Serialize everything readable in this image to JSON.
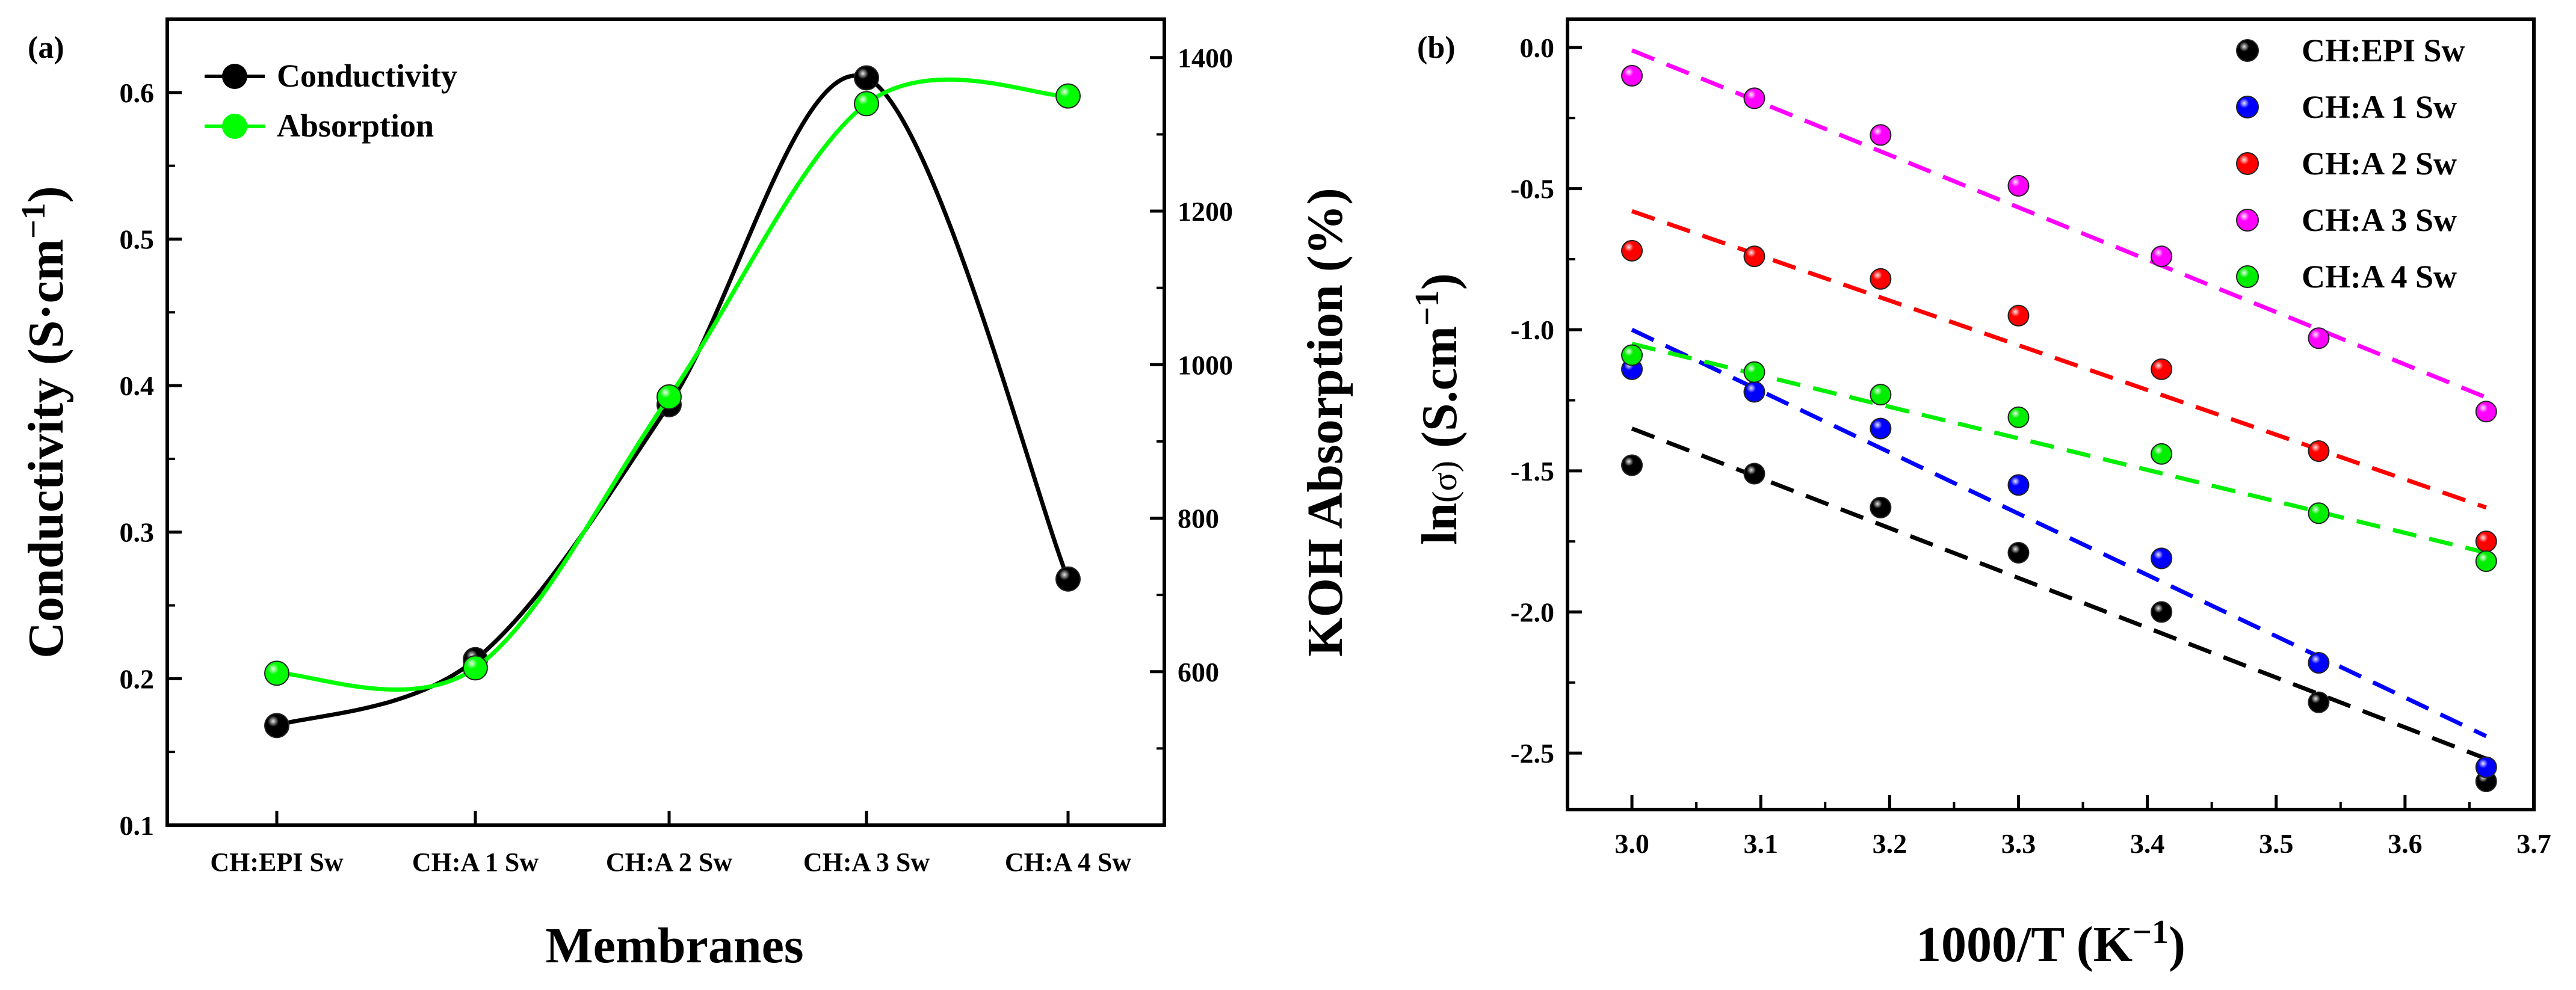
{
  "chart_data": [
    {
      "panel_label": "(a)",
      "type": "line",
      "xlabel": "Membranes",
      "ylabel": {
        "main": "Conductivity (S·cm",
        "sup": "−1",
        "end": ")"
      },
      "y2label": "KOH Absorption (%)",
      "categories": [
        "CH:EPI Sw",
        "CH:A 1 Sw",
        "CH:A 2 Sw",
        "CH:A 3 Sw",
        "CH:A 4 Sw"
      ],
      "ylim": [
        0.1,
        0.65
      ],
      "yticks": [
        "0.1",
        "0.2",
        "0.3",
        "0.4",
        "0.5",
        "0.6"
      ],
      "y2lim": [
        400,
        1450
      ],
      "y2ticks": [
        "600",
        "800",
        "1000",
        "1200",
        "1400"
      ],
      "series": [
        {
          "name": "Conductivity",
          "axis": "left",
          "color": "#000000",
          "values": [
            0.168,
            0.213,
            0.387,
            0.61,
            0.268
          ]
        },
        {
          "name": "Absorption",
          "axis": "right",
          "color": "#00ff00",
          "values": [
            598,
            605,
            958,
            1340,
            1350
          ]
        }
      ],
      "legend": [
        "Conductivity",
        "Absorption"
      ]
    },
    {
      "panel_label": "(b)",
      "type": "scatter",
      "xlabel": {
        "main": "1000/T (K",
        "sup": "−1",
        "end": ")"
      },
      "ylabel": {
        "pre": "ln",
        "mid": "(σ)",
        "main": " (S.cm",
        "sup": "−1",
        "end": ")"
      },
      "xlim": [
        2.95,
        3.7
      ],
      "xticks": [
        "3.0",
        "3.1",
        "3.2",
        "3.3",
        "3.4",
        "3.5",
        "3.6",
        "3.7"
      ],
      "ylim": [
        -2.7,
        0.1
      ],
      "yticks": [
        "0.0",
        "-0.5",
        "-1.0",
        "-1.5",
        "-2.0",
        "-2.5"
      ],
      "x": [
        3.0,
        3.095,
        3.193,
        3.3,
        3.411,
        3.533,
        3.663
      ],
      "series": [
        {
          "name": "CH:EPI Sw",
          "color": "#000000",
          "values": [
            -1.48,
            -1.51,
            -1.63,
            -1.79,
            -2.0,
            -2.32,
            -2.6
          ],
          "fit": [
            -1.35,
            -2.52
          ]
        },
        {
          "name": "CH:A 1 Sw",
          "color": "#0000ff",
          "values": [
            -1.14,
            -1.22,
            -1.35,
            -1.55,
            -1.81,
            -2.18,
            -2.55
          ],
          "fit": [
            -1.0,
            -2.44
          ]
        },
        {
          "name": "CH:A 2 Sw",
          "color": "#ff0000",
          "values": [
            -0.72,
            -0.74,
            -0.82,
            -0.95,
            -1.14,
            -1.43,
            -1.75
          ],
          "fit": [
            -0.58,
            -1.63
          ]
        },
        {
          "name": "CH:A 3 Sw",
          "color": "#ff00ff",
          "values": [
            -0.1,
            -0.18,
            -0.31,
            -0.49,
            -0.74,
            -1.03,
            -1.29
          ],
          "fit": [
            -0.01,
            -1.24
          ]
        },
        {
          "name": "CH:A 4 Sw",
          "color": "#00ee00",
          "values": [
            -1.09,
            -1.15,
            -1.23,
            -1.31,
            -1.44,
            -1.65,
            -1.82
          ],
          "fit": [
            -1.05,
            -1.79
          ]
        }
      ]
    }
  ]
}
